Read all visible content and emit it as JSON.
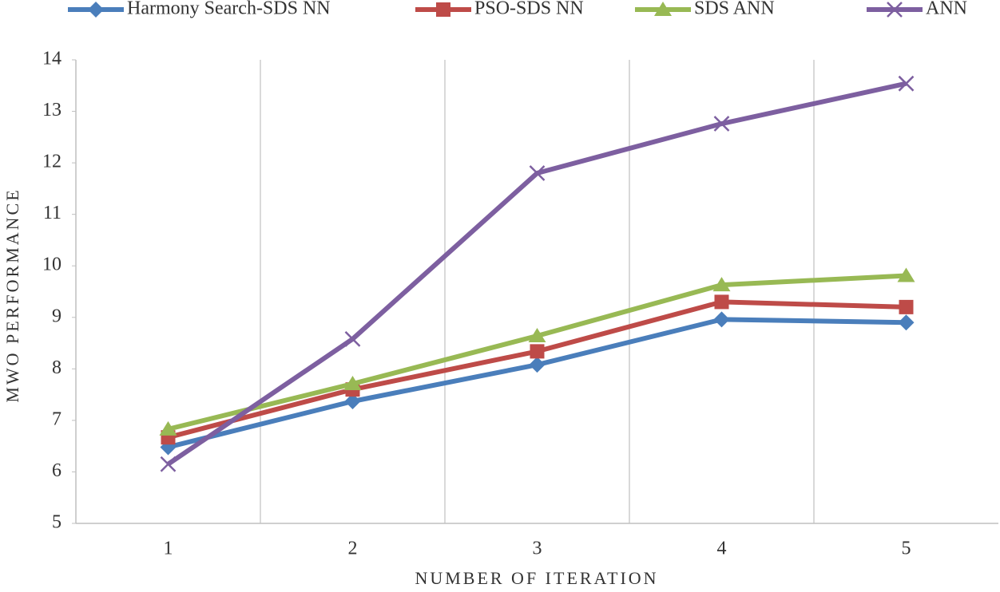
{
  "chart_data": {
    "type": "line",
    "x_label": "NUMBER OF ITERATION",
    "y_label": "MWO PERFORMANCE",
    "categories": [
      "1",
      "2",
      "3",
      "4",
      "5"
    ],
    "series": [
      {
        "name": "Harmony Search-SDS NN",
        "color": "#4a7ebb",
        "marker": "diamond",
        "values": [
          6.48,
          7.37,
          8.08,
          8.96,
          8.9
        ]
      },
      {
        "name": "PSO-SDS NN",
        "color": "#be4b48",
        "marker": "square",
        "values": [
          6.67,
          7.6,
          8.34,
          9.3,
          9.2
        ]
      },
      {
        "name": "SDS ANN",
        "color": "#98b954",
        "marker": "triangle",
        "values": [
          6.83,
          7.71,
          8.64,
          9.63,
          9.81
        ]
      },
      {
        "name": "ANN",
        "color": "#7d5fa0",
        "marker": "x",
        "values": [
          6.15,
          8.58,
          11.8,
          12.76,
          13.54
        ]
      }
    ],
    "ylim": [
      5,
      14
    ],
    "yticks": [
      5,
      6,
      7,
      8,
      9,
      10,
      11,
      12,
      13,
      14
    ],
    "grid": "vertical",
    "legend": "top"
  }
}
